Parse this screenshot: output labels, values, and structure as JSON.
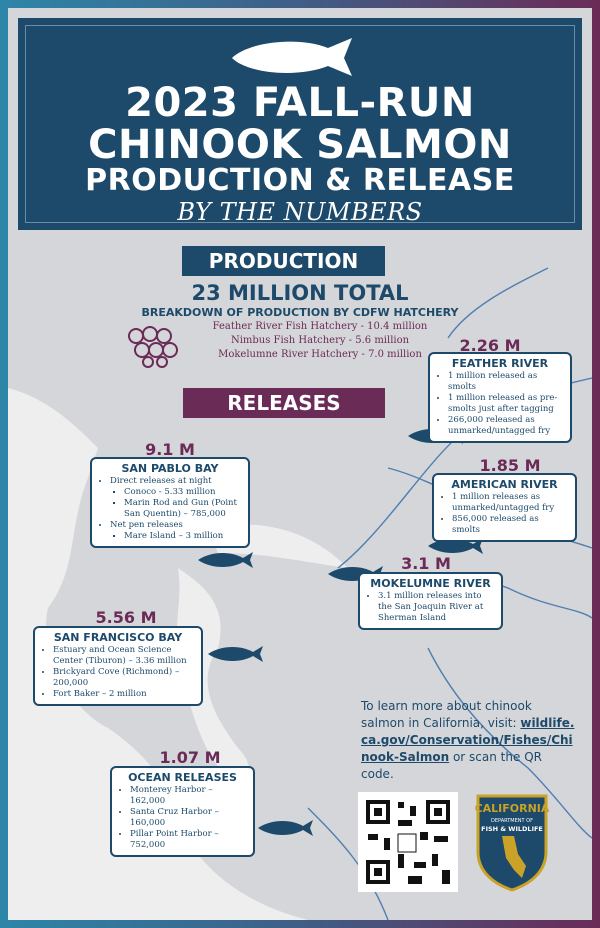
{
  "header": {
    "title_lines": [
      "2023 FALL-RUN",
      "CHINOOK SALMON",
      "PRODUCTION & RELEASE"
    ],
    "subtitle": "BY THE NUMBERS"
  },
  "production": {
    "banner": "PRODUCTION",
    "total": "23 MILLION TOTAL",
    "breakdown_title": "BREAKDOWN OF PRODUCTION BY CDFW HATCHERY",
    "items": [
      "Feather River Fish Hatchery - 10.4 million",
      "Nimbus Fish Hatchery - 5.6 million",
      "Mokelumne River Hatchery - 7.0 million"
    ]
  },
  "releases": {
    "banner": "RELEASES",
    "sites": [
      {
        "amount": "2.26 M",
        "title": "FEATHER RIVER",
        "bullets": [
          {
            "text": "1 million released as smolts"
          },
          {
            "text": "1 million released as pre-smolts just after tagging"
          },
          {
            "text": "266,000 released as unmarked/untagged fry"
          }
        ]
      },
      {
        "amount": "9.1 M",
        "title": "SAN PABLO BAY",
        "bullets": [
          {
            "text": "Direct releases at night",
            "sub": [
              "Conoco - 5.33 million",
              "Marin Rod and Gun (Point San Quentin) – 785,000"
            ]
          },
          {
            "text": "Net pen releases",
            "sub": [
              "Mare Island – 3 million"
            ]
          }
        ]
      },
      {
        "amount": "1.85 M",
        "title": "AMERICAN RIVER",
        "bullets": [
          {
            "text": "1 million releases as unmarked/untagged fry"
          },
          {
            "text": "856,000 released as smolts"
          }
        ]
      },
      {
        "amount": "3.1 M",
        "title": "MOKELUMNE RIVER",
        "bullets": [
          {
            "text": "3.1 million releases into the San Joaquin River at Sherman Island"
          }
        ]
      },
      {
        "amount": "5.56 M",
        "title": "SAN FRANCISCO BAY",
        "bullets": [
          {
            "text": "Estuary and Ocean Science Center (Tiburon) – 3.36 million"
          },
          {
            "text": "Brickyard Cove (Richmond) – 200,000"
          },
          {
            "text": "Fort Baker – 2 million"
          }
        ]
      },
      {
        "amount": "1.07 M",
        "title": "OCEAN RELEASES",
        "bullets": [
          {
            "text": "Monterey Harbor – 162,000"
          },
          {
            "text": "Santa Cruz Harbor – 160,000"
          },
          {
            "text": "Pillar Point Harbor – 752,000"
          }
        ]
      }
    ]
  },
  "info": {
    "text": "To learn more about chinook salmon in California, visit:",
    "link": "wildlife.ca.gov/Conservation/Fishes/Chinook-Salmon",
    "after": "or scan the QR code."
  },
  "logo": {
    "state": "CALIFORNIA",
    "dept": "DEPARTMENT OF",
    "name": "FISH & WILDLIFE"
  }
}
